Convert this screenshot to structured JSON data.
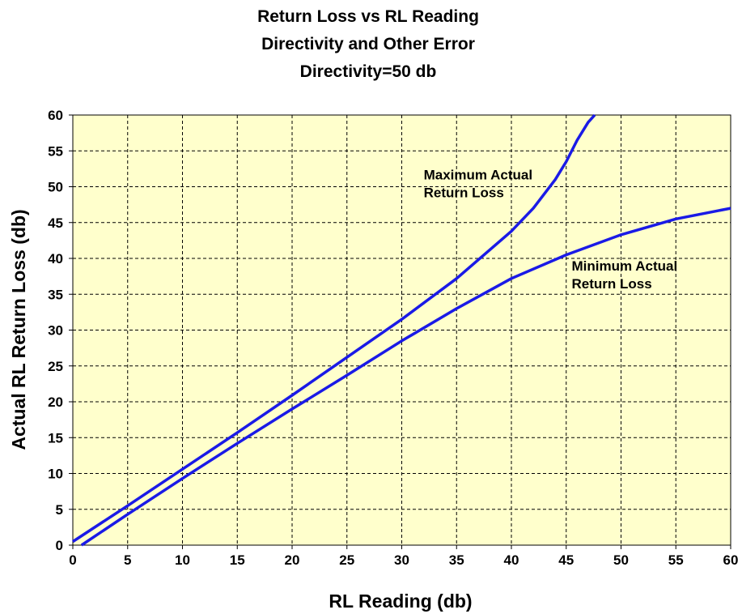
{
  "chart_data": {
    "type": "line",
    "title_lines": [
      "Return Loss vs RL Reading",
      "Directivity and Other Error",
      "Directivity=50 db"
    ],
    "xlabel": "RL Reading (db)",
    "ylabel": "Actual RL Return Loss (db)",
    "xlim": [
      0,
      60
    ],
    "ylim": [
      0,
      60
    ],
    "xticks": [
      0,
      5,
      10,
      15,
      20,
      25,
      30,
      35,
      40,
      45,
      50,
      55,
      60
    ],
    "yticks": [
      0,
      5,
      10,
      15,
      20,
      25,
      30,
      35,
      40,
      45,
      50,
      55,
      60
    ],
    "grid": true,
    "plot_background": "#ffffcc",
    "line_color": "#1a1ae6",
    "series": [
      {
        "annotation": [
          "Maximum Actual",
          "Return Loss"
        ],
        "x": [
          0,
          5,
          10,
          15,
          20,
          25,
          30,
          35,
          40,
          42,
          44,
          45,
          46,
          47,
          47.6
        ],
        "y": [
          0.5,
          5.5,
          10.6,
          15.7,
          20.9,
          26.2,
          31.5,
          37.2,
          43.8,
          47.0,
          51.0,
          53.5,
          56.5,
          59.0,
          60
        ]
      },
      {
        "annotation": [
          "Minimum Actual",
          "Return Loss"
        ],
        "x": [
          0.8,
          5,
          10,
          15,
          20,
          25,
          30,
          35,
          40,
          45,
          50,
          55,
          60
        ],
        "y": [
          0,
          4.3,
          9.3,
          14.2,
          19.0,
          23.7,
          28.5,
          33.0,
          37.2,
          40.5,
          43.3,
          45.5,
          47.0
        ]
      }
    ]
  }
}
